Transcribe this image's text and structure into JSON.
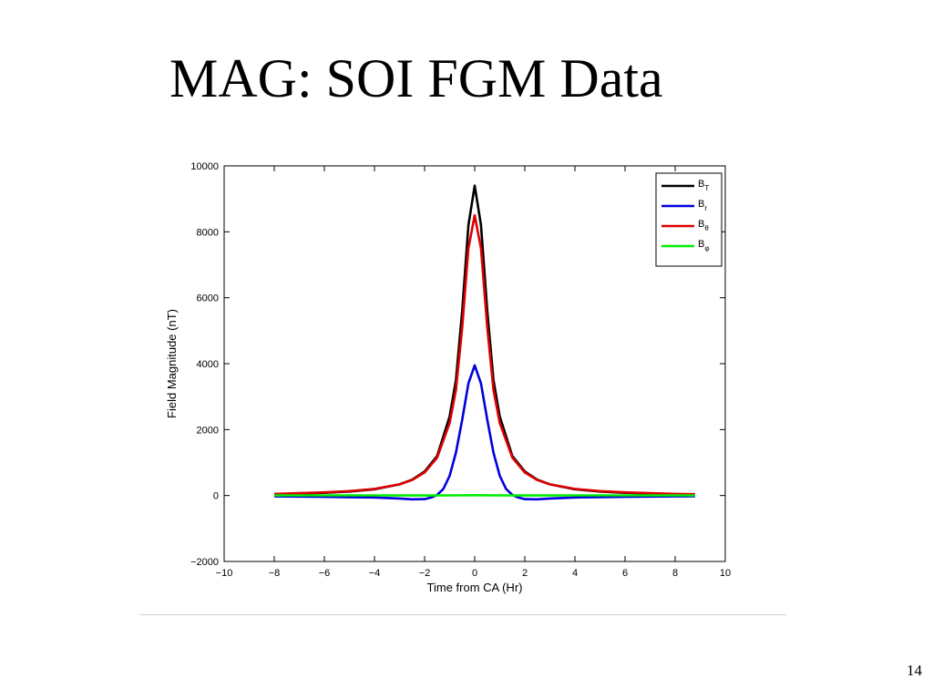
{
  "slide": {
    "title": "MAG: SOI FGM Data",
    "page_number": "14"
  },
  "chart_data": {
    "type": "line",
    "xlabel": "Time from CA (Hr)",
    "ylabel": "Field Magnitude (nT)",
    "xlim": [
      -10,
      10
    ],
    "ylim": [
      -2000,
      10000
    ],
    "xticks": [
      -10,
      -8,
      -6,
      -4,
      -2,
      0,
      2,
      4,
      6,
      8,
      10
    ],
    "xtick_labels": [
      "−10",
      "−8",
      "−6",
      "−4",
      "−2",
      "0",
      "2",
      "4",
      "6",
      "8",
      "10"
    ],
    "yticks": [
      -2000,
      0,
      2000,
      4000,
      6000,
      8000,
      10000
    ],
    "ytick_labels": [
      "−2000",
      "0",
      "2000",
      "4000",
      "6000",
      "8000",
      "10000"
    ],
    "grid": false,
    "legend_position": "top-right",
    "series": [
      {
        "name": "B",
        "subscript": "T",
        "color": "#000000",
        "points": [
          [
            -8,
            40
          ],
          [
            -7,
            58
          ],
          [
            -6,
            82
          ],
          [
            -5,
            120
          ],
          [
            -4,
            190
          ],
          [
            -3,
            340
          ],
          [
            -2.5,
            480
          ],
          [
            -2,
            730
          ],
          [
            -1.5,
            1200
          ],
          [
            -1,
            2400
          ],
          [
            -0.75,
            3500
          ],
          [
            -0.5,
            5600
          ],
          [
            -0.25,
            8200
          ],
          [
            0,
            9400
          ],
          [
            0.25,
            8200
          ],
          [
            0.5,
            5600
          ],
          [
            0.75,
            3500
          ],
          [
            1,
            2400
          ],
          [
            1.5,
            1200
          ],
          [
            2,
            730
          ],
          [
            2.5,
            480
          ],
          [
            3,
            340
          ],
          [
            4,
            190
          ],
          [
            5,
            120
          ],
          [
            6,
            82
          ],
          [
            7,
            58
          ],
          [
            8,
            40
          ],
          [
            8.8,
            32
          ]
        ]
      },
      {
        "name": "B",
        "subscript": "r",
        "color": "#0000dd",
        "points": [
          [
            -8,
            -25
          ],
          [
            -6,
            -40
          ],
          [
            -4,
            -60
          ],
          [
            -3,
            -90
          ],
          [
            -2.5,
            -115
          ],
          [
            -2,
            -110
          ],
          [
            -1.7,
            -50
          ],
          [
            -1.5,
            20
          ],
          [
            -1.25,
            200
          ],
          [
            -1,
            600
          ],
          [
            -0.75,
            1300
          ],
          [
            -0.5,
            2300
          ],
          [
            -0.25,
            3400
          ],
          [
            0,
            3950
          ],
          [
            0.25,
            3400
          ],
          [
            0.5,
            2300
          ],
          [
            0.75,
            1300
          ],
          [
            1,
            600
          ],
          [
            1.25,
            200
          ],
          [
            1.5,
            20
          ],
          [
            1.7,
            -50
          ],
          [
            2,
            -110
          ],
          [
            2.5,
            -115
          ],
          [
            3,
            -90
          ],
          [
            4,
            -60
          ],
          [
            6,
            -40
          ],
          [
            8,
            -25
          ],
          [
            8.8,
            -20
          ]
        ]
      },
      {
        "name": "B",
        "subscript": "θ",
        "color": "#dd0000",
        "points": [
          [
            -8,
            50
          ],
          [
            -7,
            70
          ],
          [
            -6,
            95
          ],
          [
            -5,
            135
          ],
          [
            -4,
            200
          ],
          [
            -3,
            340
          ],
          [
            -2.5,
            470
          ],
          [
            -2,
            700
          ],
          [
            -1.5,
            1150
          ],
          [
            -1,
            2200
          ],
          [
            -0.75,
            3200
          ],
          [
            -0.5,
            5100
          ],
          [
            -0.25,
            7500
          ],
          [
            0,
            8500
          ],
          [
            0.25,
            7500
          ],
          [
            0.5,
            5100
          ],
          [
            0.75,
            3200
          ],
          [
            1,
            2200
          ],
          [
            1.5,
            1150
          ],
          [
            2,
            700
          ],
          [
            2.5,
            470
          ],
          [
            3,
            340
          ],
          [
            4,
            200
          ],
          [
            5,
            135
          ],
          [
            6,
            95
          ],
          [
            7,
            70
          ],
          [
            8,
            50
          ],
          [
            8.8,
            40
          ]
        ]
      },
      {
        "name": "B",
        "subscript": "φ",
        "color": "#00ee00",
        "points": [
          [
            -8,
            5
          ],
          [
            -4,
            5
          ],
          [
            -2,
            3
          ],
          [
            -1,
            5
          ],
          [
            0,
            10
          ],
          [
            1,
            5
          ],
          [
            2,
            3
          ],
          [
            4,
            5
          ],
          [
            8,
            5
          ],
          [
            8.8,
            5
          ]
        ]
      }
    ]
  }
}
